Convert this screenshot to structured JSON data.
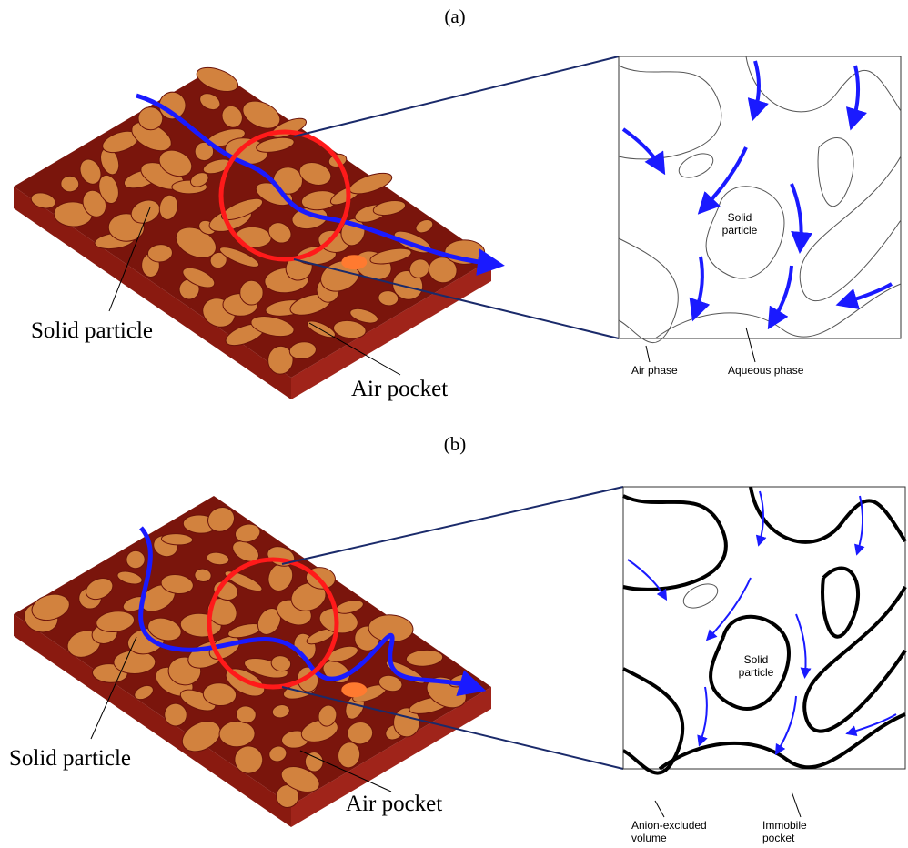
{
  "panels": [
    {
      "label": "(a)",
      "block": {
        "particle_label": "Solid particle",
        "air_label": "Air pocket"
      },
      "inset": {
        "particle_label": "Solid particle",
        "left_label": "Air phase",
        "right_label": "Aqueous phase"
      }
    },
    {
      "label": "(b)",
      "block": {
        "particle_label": "Solid particle",
        "air_label": "Air pocket"
      },
      "inset": {
        "particle_label": "Solid particle",
        "left_label": "Anion-excluded volume",
        "right_label": "Immobile pocket"
      }
    }
  ]
}
